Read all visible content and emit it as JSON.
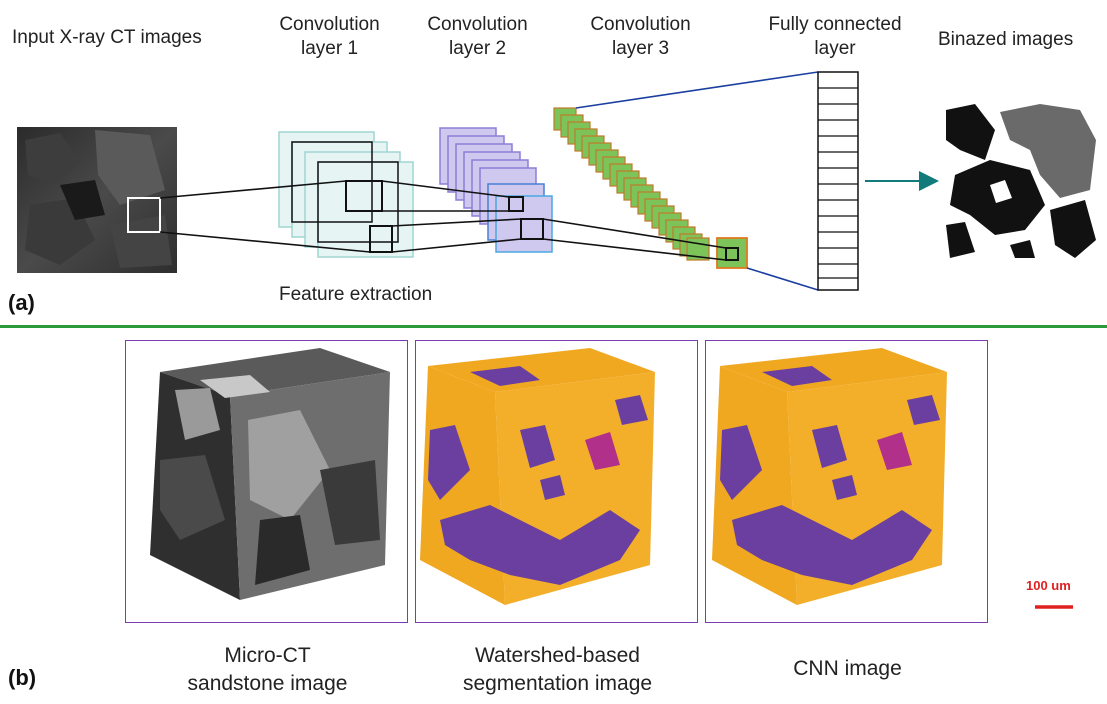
{
  "panel_a": {
    "tag": "(a)",
    "input_label": "Input X-ray CT images",
    "conv1_label": "Convolution layer 1",
    "conv2_label": "Convolution layer 2",
    "conv3_label": "Convolution layer 3",
    "fc_label": "Fully connected layer",
    "output_label": "Binazed images",
    "feature_label": "Feature extraction"
  },
  "panel_b": {
    "tag": "(b)",
    "captions": [
      "Micro-CT sandstone image",
      "Watershed-based segmentation image",
      "CNN image"
    ],
    "scale_bar_label": "100 um"
  },
  "colors": {
    "divider": "#2a9a3a",
    "conv1": "#9fd6d2",
    "conv2": "#8c7fd6",
    "conv3": "#6aa84f",
    "matrix": "#f0a820",
    "pore": "#6b3fa0",
    "scale": "#e02020"
  }
}
